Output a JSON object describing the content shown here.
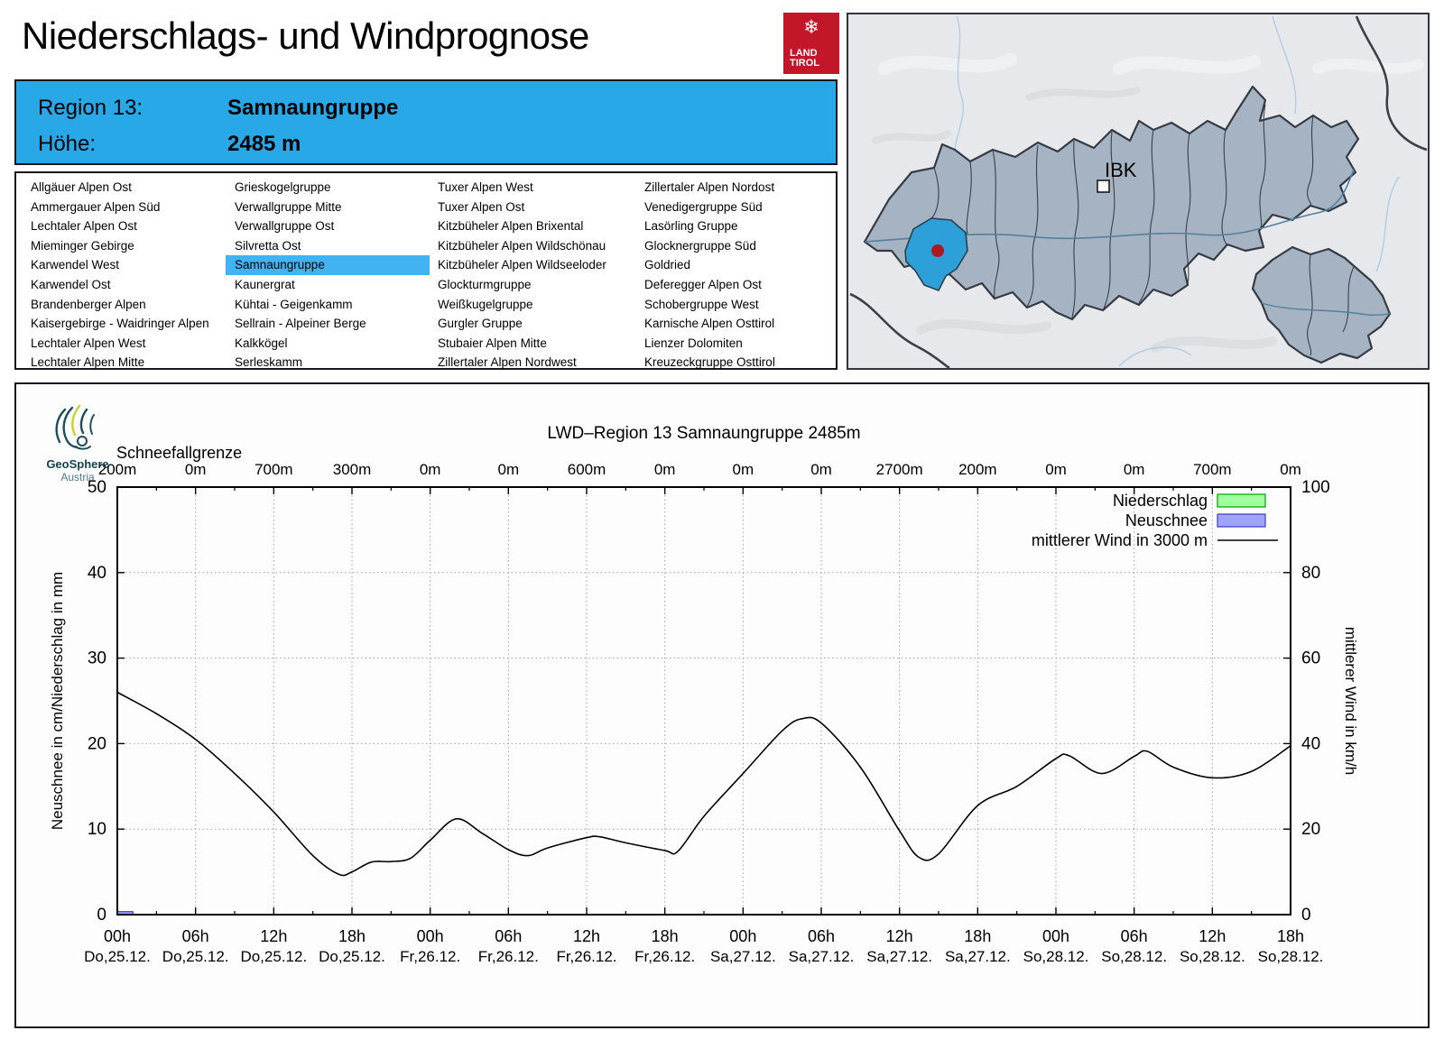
{
  "header": {
    "title": "Niederschlags- und Windprognose",
    "logo": {
      "line1": "LAND",
      "line2": "TIROL",
      "color": "#c11728",
      "snowflake": "❄"
    }
  },
  "region_info": {
    "region_label": "Region 13:",
    "region_value": "Samnaungruppe",
    "height_label": "Höhe:",
    "height_value": "2485 m",
    "bg_color": "#29a8e8"
  },
  "region_list": {
    "selected": "Samnaungruppe",
    "highlight_color": "#41b2f2",
    "columns": [
      [
        "Allgäuer Alpen Ost",
        "Ammergauer Alpen Süd",
        "Lechtaler Alpen Ost",
        "Mieminger Gebirge",
        "Karwendel West",
        "Karwendel Ost",
        "Brandenberger Alpen",
        "Kaisergebirge - Waidringer Alpen",
        "Lechtaler Alpen West",
        "Lechtaler Alpen Mitte"
      ],
      [
        "Grieskogelgruppe",
        "Verwallgruppe Mitte",
        "Verwallgruppe Ost",
        "Silvretta Ost",
        "Samnaungruppe",
        "Kaunergrat",
        "Kühtai - Geigenkamm",
        "Sellrain - Alpeiner Berge",
        "Kalkkögel",
        "Serleskamm"
      ],
      [
        "Tuxer Alpen West",
        "Tuxer Alpen Ost",
        "Kitzbüheler Alpen Brixental",
        "Kitzbüheler Alpen Wildschönau",
        "Kitzbüheler Alpen Wildseeloder",
        "Glockturmgruppe",
        "Weißkugelgruppe",
        "Gurgler Gruppe",
        "Stubaier Alpen Mitte",
        "Zillertaler Alpen Nordwest"
      ],
      [
        "Zillertaler Alpen Nordost",
        "Venedigergruppe Süd",
        "Lasörling Gruppe",
        "Glocknergruppe Süd",
        "Goldried",
        "Deferegger Alpen Ost",
        "Schobergruppe West",
        "Karnische Alpen Osttirol",
        "Lienzer Dolomiten",
        "Kreuzeckgruppe Osttirol"
      ]
    ]
  },
  "map": {
    "label_ibk": "IBK",
    "region_fill": "#a6b3c3",
    "highlight_fill": "#2d9fd9",
    "marker_color": "#ab1a22",
    "background": "#e7e8eb"
  },
  "chart_data": {
    "type": "line",
    "title": "LWD–Region 13 Samnaungruppe 2485m",
    "watermark": {
      "name": "GeoSphere",
      "sub": "Austria"
    },
    "snowline": {
      "label": "Schneefallgrenze",
      "values": [
        "200m",
        "0m",
        "700m",
        "300m",
        "0m",
        "0m",
        "600m",
        "0m",
        "0m",
        "0m",
        "2700m",
        "200m",
        "0m",
        "0m",
        "700m",
        "0m"
      ]
    },
    "x_ticks": [
      {
        "time": "00h",
        "date": "Do,25.12."
      },
      {
        "time": "06h",
        "date": "Do,25.12."
      },
      {
        "time": "12h",
        "date": "Do,25.12."
      },
      {
        "time": "18h",
        "date": "Do,25.12."
      },
      {
        "time": "00h",
        "date": "Fr,26.12."
      },
      {
        "time": "06h",
        "date": "Fr,26.12."
      },
      {
        "time": "12h",
        "date": "Fr,26.12."
      },
      {
        "time": "18h",
        "date": "Fr,26.12."
      },
      {
        "time": "00h",
        "date": "Sa,27.12."
      },
      {
        "time": "06h",
        "date": "Sa,27.12."
      },
      {
        "time": "12h",
        "date": "Sa,27.12."
      },
      {
        "time": "18h",
        "date": "Sa,27.12."
      },
      {
        "time": "00h",
        "date": "So,28.12."
      },
      {
        "time": "06h",
        "date": "So,28.12."
      },
      {
        "time": "12h",
        "date": "So,28.12."
      },
      {
        "time": "18h",
        "date": "So,28.12."
      }
    ],
    "x_hours_total": 90,
    "y_left": {
      "label": "Neuschnee in cm/Niederschlag in mm",
      "ticks": [
        0,
        10,
        20,
        30,
        40,
        50
      ],
      "min": 0,
      "max": 50
    },
    "y_right": {
      "label": "mittlerer Wind in km/h",
      "ticks": [
        0,
        20,
        40,
        60,
        80,
        100
      ],
      "min": 0,
      "max": 100
    },
    "legend": [
      {
        "label": "Niederschlag",
        "type": "box",
        "fill": "#9fff9f",
        "stroke": "#00a000"
      },
      {
        "label": "Neuschnee",
        "type": "box",
        "fill": "#9fa3fa",
        "stroke": "#3c3cc8"
      },
      {
        "label": "mittlerer Wind in 3000 m",
        "type": "line",
        "stroke": "#000000"
      }
    ],
    "niederschlag_bars": [],
    "neuschnee_bars": [
      {
        "t_start": 0,
        "t_end": 1.2,
        "value_cm": 0.35
      }
    ],
    "wind_series": {
      "name": "mittlerer Wind in 3000 m",
      "unit": "km/h",
      "axis": "right",
      "points": [
        [
          0,
          52
        ],
        [
          3,
          47
        ],
        [
          6,
          41
        ],
        [
          9,
          33
        ],
        [
          12,
          24
        ],
        [
          15,
          13.8
        ],
        [
          17,
          9.4
        ],
        [
          18,
          10
        ],
        [
          19.5,
          12.3
        ],
        [
          21,
          12.4
        ],
        [
          22.5,
          13.2
        ],
        [
          24,
          17.4
        ],
        [
          26,
          22.4
        ],
        [
          28,
          19
        ],
        [
          30,
          15.2
        ],
        [
          31.5,
          13.8
        ],
        [
          33,
          15.6
        ],
        [
          36,
          18
        ],
        [
          37,
          18.2
        ],
        [
          39,
          16.8
        ],
        [
          42,
          15
        ],
        [
          43,
          14.8
        ],
        [
          45,
          23
        ],
        [
          48,
          33
        ],
        [
          51,
          43
        ],
        [
          52.5,
          45.8
        ],
        [
          54,
          44.8
        ],
        [
          57,
          34.5
        ],
        [
          60,
          19.6
        ],
        [
          61.5,
          13.4
        ],
        [
          63,
          14.2
        ],
        [
          66,
          25.5
        ],
        [
          69,
          30
        ],
        [
          72,
          36.5
        ],
        [
          73,
          37.2
        ],
        [
          75.5,
          33
        ],
        [
          78,
          37
        ],
        [
          79,
          38.2
        ],
        [
          81,
          34.5
        ],
        [
          84,
          32
        ],
        [
          87,
          33.5
        ],
        [
          90,
          39.5
        ]
      ]
    }
  }
}
